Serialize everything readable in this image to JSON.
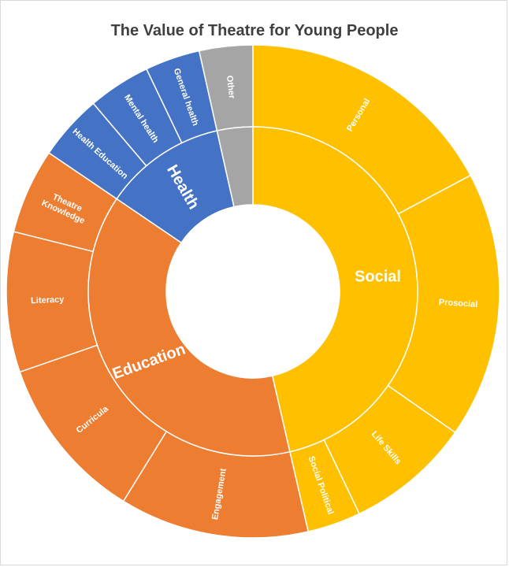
{
  "chart_data": {
    "type": "sunburst",
    "title": "The Value of Theatre for Young People",
    "unit": "percent of total",
    "colors": {
      "Social": "#FFC000",
      "Education": "#ED7D31",
      "Health": "#4472C4",
      "Other": "#A5A5A5",
      "separator": "#FFFFFF"
    },
    "categories": [
      {
        "name": "Social",
        "children": [
          {
            "name": "Personal",
            "value": 17.2
          },
          {
            "name": "Prosocial",
            "value": 17.5
          },
          {
            "name": "Life Skills",
            "value": 8.2
          },
          {
            "name": "Social Political",
            "value": 3.5
          }
        ]
      },
      {
        "name": "Education",
        "children": [
          {
            "name": "Engagement",
            "value": 12.4
          },
          {
            "name": "Curricula",
            "value": 10.9
          },
          {
            "name": "Literacy",
            "value": 9.2
          },
          {
            "name": "Theatre Knowledge",
            "value": 5.6
          }
        ]
      },
      {
        "name": "Health",
        "children": [
          {
            "name": "Health Education",
            "value": 4.3
          },
          {
            "name": "Mental health",
            "value": 4.1
          },
          {
            "name": "General health",
            "value": 3.6
          }
        ]
      },
      {
        "name": "Other",
        "children": [
          {
            "name": "Other",
            "value": 3.5
          }
        ]
      }
    ]
  }
}
